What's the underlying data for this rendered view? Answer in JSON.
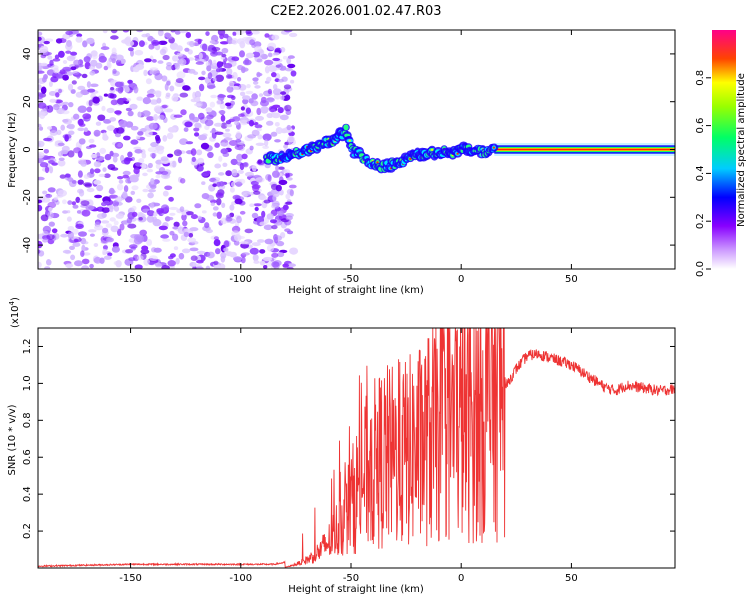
{
  "title": "C2E2.2026.001.02.47.R03",
  "chart_data": [
    {
      "type": "heatmap",
      "title": "C2E2.2026.001.02.47.R03",
      "xlabel": "Height of straight line (km)",
      "ylabel": "Frequency (Hz)",
      "xlim": [
        -192,
        97
      ],
      "ylim": [
        -50,
        50
      ],
      "xticks": [
        -150,
        -100,
        -50,
        0,
        50
      ],
      "yticks": [
        -40,
        -20,
        0,
        20,
        40
      ],
      "noise_region_x": [
        -192,
        -80
      ],
      "colorbar": {
        "label": "Normalized spectral amplitude",
        "range": [
          0,
          1
        ],
        "ticks": [
          "0.0",
          "0.2",
          "0.4",
          "0.6",
          "0.8"
        ],
        "colors": [
          "#ffffff",
          "#8800ff",
          "#0000ff",
          "#00ffff",
          "#00ff00",
          "#ffff00",
          "#ff0000",
          "#ff0088"
        ]
      },
      "ridge": [
        {
          "x": -88,
          "y": -4
        },
        {
          "x": -80,
          "y": -3
        },
        {
          "x": -70,
          "y": 0
        },
        {
          "x": -60,
          "y": 3
        },
        {
          "x": -55,
          "y": 6
        },
        {
          "x": -52,
          "y": 8
        },
        {
          "x": -50,
          "y": 0
        },
        {
          "x": -45,
          "y": -3
        },
        {
          "x": -40,
          "y": -6
        },
        {
          "x": -35,
          "y": -7
        },
        {
          "x": -30,
          "y": -6
        },
        {
          "x": -25,
          "y": -4
        },
        {
          "x": -20,
          "y": -2
        },
        {
          "x": -15,
          "y": -2
        },
        {
          "x": -10,
          "y": -1
        },
        {
          "x": -5,
          "y": -1
        },
        {
          "x": 0,
          "y": 0
        },
        {
          "x": 5,
          "y": 0
        },
        {
          "x": 10,
          "y": -1
        },
        {
          "x": 15,
          "y": 0
        },
        {
          "x": 20,
          "y": 0
        },
        {
          "x": 97,
          "y": 0
        }
      ],
      "ridge_peak_x_start": 15
    },
    {
      "type": "line",
      "xlabel": "Height of straight line (km)",
      "ylabel": "SNR (10 * v/v)",
      "y_multiplier": "(x10",
      "y_multiplier_exp": "4",
      "y_multiplier_close": ")",
      "xlim": [
        -192,
        97
      ],
      "ylim": [
        0,
        1.3
      ],
      "xticks": [
        -150,
        -100,
        -50,
        0,
        50
      ],
      "yticks": [
        "0.2",
        "0.4",
        "0.6",
        "0.8",
        "1.0",
        "1.2"
      ],
      "series": [
        {
          "name": "SNR",
          "color": "#ee3333",
          "points": [
            [
              -192,
              0.01
            ],
            [
              -150,
              0.02
            ],
            [
              -120,
              0.02
            ],
            [
              -100,
              0.02
            ],
            [
              -85,
              0.02
            ],
            [
              -80,
              0.03
            ],
            [
              -75,
              0.08
            ],
            [
              -70,
              0.12
            ],
            [
              -65,
              0.18
            ],
            [
              -60,
              0.25
            ],
            [
              -55,
              0.35
            ],
            [
              -50,
              0.45
            ],
            [
              -45,
              0.55
            ],
            [
              -40,
              0.55
            ],
            [
              -35,
              0.6
            ],
            [
              -30,
              0.6
            ],
            [
              -25,
              0.62
            ],
            [
              -20,
              0.65
            ],
            [
              -15,
              0.7
            ],
            [
              -10,
              0.75
            ],
            [
              -5,
              0.78
            ],
            [
              0,
              0.8
            ],
            [
              5,
              0.82
            ],
            [
              10,
              0.85
            ],
            [
              15,
              0.9
            ],
            [
              20,
              0.98
            ],
            [
              25,
              1.08
            ],
            [
              30,
              1.15
            ],
            [
              35,
              1.16
            ],
            [
              40,
              1.14
            ],
            [
              45,
              1.12
            ],
            [
              50,
              1.1
            ],
            [
              55,
              1.06
            ],
            [
              60,
              1.02
            ],
            [
              65,
              0.98
            ],
            [
              70,
              0.96
            ],
            [
              75,
              0.99
            ],
            [
              80,
              0.98
            ],
            [
              85,
              0.97
            ],
            [
              90,
              0.96
            ],
            [
              97,
              0.97
            ]
          ]
        }
      ]
    }
  ]
}
